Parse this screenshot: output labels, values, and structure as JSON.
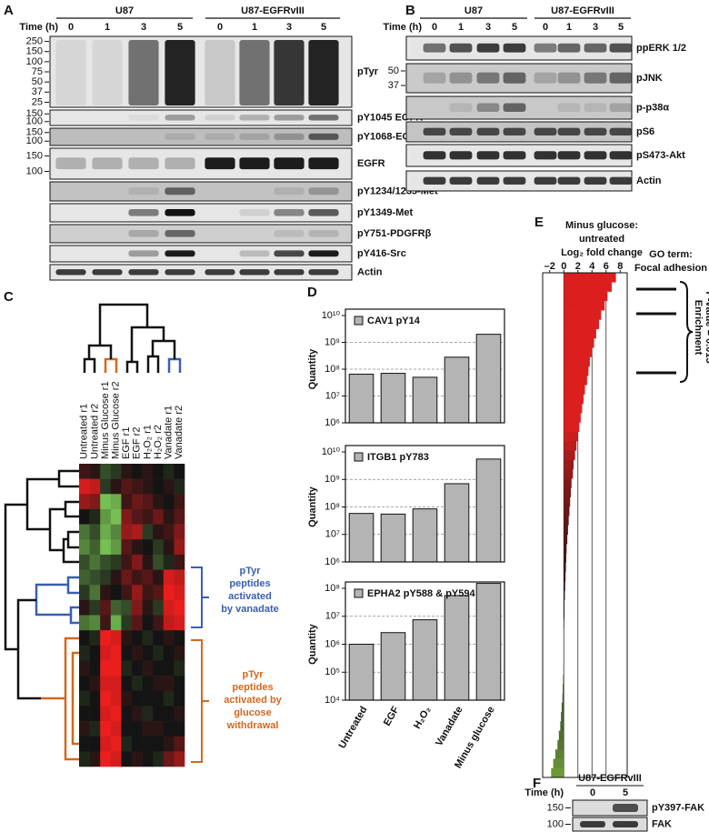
{
  "panel_a": {
    "label": "A",
    "time_label": "Time (h)",
    "groups": [
      "U87",
      "U87-EGFRvIII"
    ],
    "times": [
      "0",
      "1",
      "3",
      "5",
      "0",
      "1",
      "3",
      "5"
    ],
    "blots": [
      {
        "name": "pTyr",
        "markers": [
          "250",
          "150",
          "100",
          "75",
          "50",
          "37",
          "25"
        ]
      },
      {
        "name": "pY1045 EGFR",
        "markers": [
          "150",
          "100"
        ]
      },
      {
        "name": "pY1068-EGFR",
        "markers": [
          "150",
          "100"
        ]
      },
      {
        "name": "EGFR",
        "markers": [
          "150",
          "100"
        ]
      },
      {
        "name": "pY1234/1235-Met",
        "markers": []
      },
      {
        "name": "pY1349-Met",
        "markers": []
      },
      {
        "name": "pY751-PDGFRβ",
        "markers": []
      },
      {
        "name": "pY416-Src",
        "markers": []
      },
      {
        "name": "Actin",
        "markers": []
      }
    ]
  },
  "panel_b": {
    "label": "B",
    "time_label": "Time (h)",
    "groups": [
      "U87",
      "U87-EGFRvIII"
    ],
    "times": [
      "0",
      "1",
      "3",
      "5",
      "0",
      "1",
      "3",
      "5"
    ],
    "blots": [
      {
        "name": "ppERK 1/2",
        "markers": []
      },
      {
        "name": "pJNK",
        "markers": [
          "50",
          "37"
        ]
      },
      {
        "name": "p-p38α",
        "markers": []
      },
      {
        "name": "pS6",
        "markers": []
      },
      {
        "name": "pS473-Akt",
        "markers": []
      },
      {
        "name": "Actin",
        "markers": []
      }
    ]
  },
  "panel_c": {
    "label": "C",
    "columns": [
      "Untreated r1",
      "Untreated r2",
      "Minus Glucose r1",
      "Minus Glucose r2",
      "EGF r1",
      "EGF r2",
      "H₂O₂ r1",
      "H₂O₂ r2",
      "Vanadate r1",
      "Vanadate r2"
    ],
    "heatmap": [
      [
        0.2,
        0.1,
        -0.3,
        -0.2,
        0.1,
        0.0,
        0.1,
        0.0,
        -0.1,
        0.0
      ],
      [
        0.9,
        0.8,
        -0.2,
        0.1,
        0.3,
        0.2,
        0.1,
        0.0,
        0.1,
        -0.1
      ],
      [
        0.6,
        0.5,
        -0.9,
        -0.8,
        0.2,
        0.4,
        0.3,
        0.1,
        0.0,
        0.2
      ],
      [
        0.0,
        -0.1,
        -0.7,
        -0.9,
        0.5,
        0.3,
        0.2,
        0.4,
        0.1,
        0.3
      ],
      [
        -0.5,
        -0.3,
        -0.8,
        -0.6,
        0.6,
        0.7,
        -0.2,
        0.1,
        0.2,
        0.5
      ],
      [
        -0.6,
        -0.4,
        -0.9,
        -0.7,
        0.3,
        0.1,
        0.0,
        -0.2,
        0.1,
        0.6
      ],
      [
        -0.3,
        -0.5,
        -0.3,
        -0.2,
        0.2,
        0.5,
        0.1,
        -0.3,
        -0.1,
        0.2
      ],
      [
        -0.4,
        -0.3,
        -0.2,
        0.1,
        0.4,
        0.2,
        0.3,
        0.1,
        0.9,
        0.8
      ],
      [
        -0.2,
        -0.5,
        0.1,
        0.0,
        0.2,
        0.6,
        0.2,
        0.3,
        1.0,
        0.9
      ],
      [
        0.1,
        -0.2,
        0.3,
        -0.4,
        -0.3,
        0.5,
        0.1,
        -0.2,
        0.9,
        1.0
      ],
      [
        -0.5,
        -0.6,
        0.2,
        -0.8,
        -0.2,
        0.3,
        0.0,
        0.2,
        0.8,
        0.9
      ],
      [
        0.0,
        -0.1,
        1.0,
        0.9,
        0.1,
        0.0,
        -0.1,
        0.0,
        0.1,
        0.0
      ],
      [
        -0.1,
        0.0,
        0.9,
        1.0,
        0.0,
        0.1,
        0.0,
        -0.1,
        0.0,
        0.1
      ],
      [
        0.1,
        0.0,
        1.0,
        1.0,
        -0.1,
        0.0,
        0.1,
        0.0,
        0.0,
        -0.1
      ],
      [
        0.0,
        0.1,
        0.9,
        0.9,
        0.0,
        -0.1,
        0.0,
        0.1,
        0.1,
        0.0
      ],
      [
        -0.1,
        0.0,
        1.0,
        0.9,
        0.1,
        0.0,
        0.0,
        0.0,
        -0.1,
        0.0
      ],
      [
        0.0,
        0.0,
        0.9,
        1.0,
        0.0,
        0.1,
        -0.1,
        0.0,
        0.0,
        0.1
      ],
      [
        0.1,
        -0.1,
        1.0,
        0.9,
        0.0,
        0.0,
        0.1,
        0.1,
        0.0,
        0.0
      ],
      [
        0.0,
        0.0,
        0.9,
        1.0,
        -0.1,
        0.0,
        0.0,
        0.0,
        0.1,
        0.3
      ],
      [
        -0.1,
        0.1,
        1.0,
        0.9,
        0.0,
        0.1,
        0.0,
        -0.1,
        0.4,
        0.6
      ]
    ],
    "vanadate_text": [
      "pTyr",
      "peptides",
      "activated",
      "by vanadate"
    ],
    "glucose_text": [
      "pTyr",
      "peptides",
      "activated by",
      "glucose",
      "withdrawal"
    ]
  },
  "panel_d": {
    "label": "D",
    "categories": [
      "Untreated",
      "EGF",
      "H₂O₂",
      "Vanadate",
      "Minus glucose"
    ],
    "charts": [
      {
        "type": "bar",
        "name": "CAV1 pY14",
        "y_label": "Quantity",
        "color": "#b4b4b4",
        "log": true,
        "values": [
          65000000,
          70000000,
          50000000,
          280000000,
          2000000000
        ],
        "ylim": [
          1000000,
          10000000000
        ],
        "yticks": [
          {
            "value": 1000000,
            "label": "10⁶"
          },
          {
            "value": 10000000,
            "label": "10⁷"
          },
          {
            "value": 100000000,
            "label": "10⁸"
          },
          {
            "value": 1000000000,
            "label": "10⁹"
          },
          {
            "value": 10000000000,
            "label": "10¹⁰"
          }
        ]
      },
      {
        "type": "bar",
        "name": "ITGB1 pY783",
        "y_label": "Quantity",
        "color": "#b4b4b4",
        "log": true,
        "values": [
          58000000,
          55000000,
          85000000,
          700000000,
          5500000000
        ],
        "ylim": [
          1000000,
          10000000000
        ],
        "yticks": [
          {
            "value": 1000000,
            "label": "10⁶"
          },
          {
            "value": 10000000,
            "label": "10⁷"
          },
          {
            "value": 100000000,
            "label": "10⁸"
          },
          {
            "value": 1000000000,
            "label": "10⁹"
          },
          {
            "value": 10000000000,
            "label": "10¹⁰"
          }
        ]
      },
      {
        "type": "bar",
        "name": "EPHA2 pY588 & pY594",
        "y_label": "Quantity",
        "color": "#b4b4b4",
        "log": true,
        "values": [
          1000000,
          2600000,
          7500000,
          55000000,
          150000000
        ],
        "ylim": [
          10000,
          100000000
        ],
        "yticks": [
          {
            "value": 10000,
            "label": "10⁴"
          },
          {
            "value": 100000,
            "label": "10⁵"
          },
          {
            "value": 1000000,
            "label": "10⁶"
          },
          {
            "value": 10000000,
            "label": "10⁷"
          },
          {
            "value": 100000000,
            "label": "10⁸"
          }
        ]
      }
    ]
  },
  "panel_e": {
    "label": "E",
    "type": "bar",
    "title": [
      "Minus glucose:",
      "untreated",
      "Log₂ fold change"
    ],
    "xlim": [
      -3,
      9
    ],
    "xticks": [
      {
        "value": -2,
        "label": "–2"
      },
      0,
      2,
      4,
      6,
      8
    ],
    "values": [
      7.4,
      6.8,
      6.2,
      5.8,
      5.3,
      5.0,
      4.6,
      4.3,
      4.0,
      3.7,
      3.5,
      3.3,
      3.0,
      2.8,
      2.6,
      2.4,
      2.2,
      2.0,
      1.8,
      1.6,
      1.4,
      1.3,
      1.1,
      1.0,
      0.9,
      0.8,
      0.7,
      0.6,
      0.5,
      0.4,
      0.35,
      0.3,
      0.25,
      0.2,
      0.15,
      0.1,
      0.1,
      0.05,
      0,
      0,
      0,
      0,
      -0.05,
      -0.1,
      -0.15,
      -0.2,
      -0.3,
      -0.4,
      -0.5,
      -0.7,
      -0.9,
      -1.2,
      -1.5,
      -1.8
    ],
    "go_title": [
      "GO term:",
      "Focal adhesion"
    ],
    "enrichment": [
      "Enrichment",
      "P-value = 0.015"
    ]
  },
  "panel_f": {
    "label": "F",
    "time_label": "Time (h)",
    "group": "U87-EGFRvIII",
    "times": [
      "0",
      "5"
    ],
    "blots": [
      {
        "name": "pY397-FAK",
        "markers": [
          "150"
        ]
      },
      {
        "name": "FAK",
        "markers": [
          "100"
        ]
      }
    ]
  }
}
